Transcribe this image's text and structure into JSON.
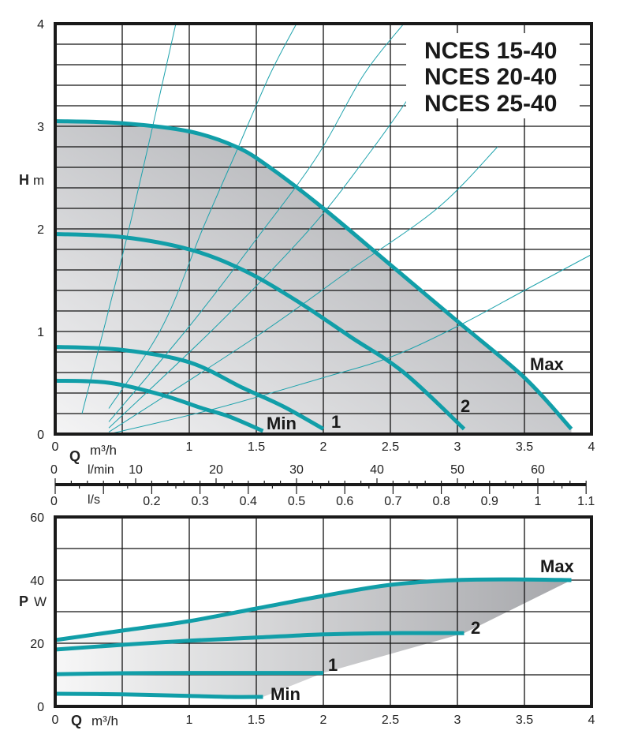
{
  "colors": {
    "curve": "#119ea8",
    "system_curve": "#1fa3ad",
    "grid": "#111111",
    "frame": "#1a1a1a",
    "fill_dark": "#a9aaae",
    "fill_light": "#f2f2f3"
  },
  "chart_data": [
    {
      "type": "line",
      "title_lines": [
        "NCES 15-40",
        "NCES 20-40",
        "NCES 25-40"
      ],
      "ylabel_bold": "H",
      "ylabel_unit": "m",
      "xlabel_bold": "Q",
      "xlabel_unit": "m³/h",
      "xlim": [
        0,
        4
      ],
      "ylim": [
        0,
        4
      ],
      "x_ticks": [
        "0",
        "1",
        "1.5",
        "2",
        "2.5",
        "3",
        "3.5",
        "4"
      ],
      "x_tick_values": [
        0,
        1,
        1.5,
        2,
        2.5,
        3,
        3.5,
        4
      ],
      "y_ticks": [
        "0",
        "1",
        "2",
        "3",
        "4"
      ],
      "y_tick_values": [
        0,
        1,
        2,
        3,
        4
      ],
      "grid": true,
      "series": [
        {
          "name": "Max",
          "label": "Max",
          "x": [
            0,
            0.5,
            1,
            1.35,
            1.6,
            2.0,
            2.5,
            3.0,
            3.5,
            3.85
          ],
          "y": [
            3.05,
            3.03,
            2.95,
            2.8,
            2.6,
            2.2,
            1.65,
            1.1,
            0.55,
            0.05
          ]
        },
        {
          "name": "2",
          "label": "2",
          "x": [
            0,
            0.5,
            1.0,
            1.4,
            1.8,
            2.2,
            2.6,
            3.05
          ],
          "y": [
            1.95,
            1.92,
            1.8,
            1.6,
            1.3,
            0.95,
            0.6,
            0.05
          ]
        },
        {
          "name": "1",
          "label": "1",
          "x": [
            0,
            0.5,
            1.0,
            1.4,
            1.7,
            2.0
          ],
          "y": [
            0.85,
            0.82,
            0.7,
            0.45,
            0.27,
            0.05
          ]
        },
        {
          "name": "Min",
          "label": "Min",
          "x": [
            0,
            0.4,
            0.8,
            1.1,
            1.3,
            1.55
          ],
          "y": [
            0.52,
            0.5,
            0.38,
            0.25,
            0.17,
            0.03
          ]
        }
      ],
      "system_curves": [
        {
          "x": [
            0.2,
            0.55,
            0.9
          ],
          "y": [
            0.2,
            2.0,
            4.0
          ]
        },
        {
          "x": [
            0.4,
            0.8,
            1.1,
            1.35,
            1.6,
            1.8
          ],
          "y": [
            0.25,
            1.05,
            2.0,
            2.75,
            3.5,
            4.0
          ]
        },
        {
          "x": [
            0.4,
            1.0,
            1.5,
            1.95,
            2.3,
            2.6
          ],
          "y": [
            0.12,
            1.05,
            1.9,
            2.7,
            3.5,
            4.0
          ]
        },
        {
          "x": [
            0.4,
            1.2,
            1.9,
            2.35,
            2.65
          ],
          "y": [
            0.06,
            1.05,
            2.0,
            2.75,
            3.3
          ]
        },
        {
          "x": [
            0.4,
            1.5,
            2.2,
            2.85,
            3.3
          ],
          "y": [
            0.02,
            0.95,
            1.6,
            2.2,
            2.8
          ]
        },
        {
          "x": [
            0.4,
            1.2,
            2.0,
            2.5,
            3.0,
            3.5,
            4.0
          ],
          "y": [
            0.0,
            0.25,
            0.55,
            0.75,
            1.05,
            1.4,
            1.75
          ]
        }
      ]
    },
    {
      "type": "scale",
      "label_bold": "Q",
      "unit_top": "l/min",
      "unit_bottom": "l/s",
      "top_zero": "0",
      "bottom_zero": "0",
      "lmin_ticks": [
        "10",
        "20",
        "30",
        "40",
        "50",
        "60"
      ],
      "lmin_values": [
        10,
        20,
        30,
        40,
        50,
        60
      ],
      "ls_ticks": [
        "0.2",
        "0.3",
        "0.4",
        "0.5",
        "0.6",
        "0.7",
        "0.8",
        "0.9",
        "1",
        "1.1"
      ],
      "ls_values": [
        0.2,
        0.3,
        0.4,
        0.5,
        0.6,
        0.7,
        0.8,
        0.9,
        1.0,
        1.1
      ]
    },
    {
      "type": "line",
      "ylabel_bold": "P",
      "ylabel_unit": "W",
      "xlabel_bold": "Q",
      "xlabel_unit": "m³/h",
      "xlim": [
        0,
        4
      ],
      "ylim": [
        0,
        60
      ],
      "x_ticks": [
        "0",
        "1",
        "1.5",
        "2",
        "2.5",
        "3",
        "3.5",
        "4"
      ],
      "x_tick_values": [
        0,
        1,
        1.5,
        2,
        2.5,
        3,
        3.5,
        4
      ],
      "y_ticks": [
        "0",
        "20",
        "40",
        "60"
      ],
      "y_tick_values": [
        0,
        20,
        40,
        60
      ],
      "grid": true,
      "series": [
        {
          "name": "Max",
          "label": "Max",
          "x": [
            0,
            0.5,
            1.0,
            1.5,
            2.0,
            2.5,
            3.0,
            3.5,
            3.85
          ],
          "y": [
            21,
            24,
            27,
            31,
            35,
            38.5,
            40,
            40.2,
            40
          ]
        },
        {
          "name": "2",
          "label": "2",
          "x": [
            0,
            0.5,
            1.0,
            1.5,
            2.0,
            2.5,
            3.05
          ],
          "y": [
            18,
            19.5,
            20.8,
            21.8,
            22.8,
            23.2,
            23.2
          ]
        },
        {
          "name": "1",
          "label": "1",
          "x": [
            0,
            0.5,
            1.0,
            1.5,
            2.0
          ],
          "y": [
            10.2,
            10.5,
            10.6,
            10.6,
            10.6
          ]
        },
        {
          "name": "Min",
          "label": "Min",
          "x": [
            0,
            0.5,
            1.0,
            1.3,
            1.55
          ],
          "y": [
            4.0,
            3.8,
            3.3,
            3.0,
            3.0
          ]
        }
      ]
    }
  ]
}
